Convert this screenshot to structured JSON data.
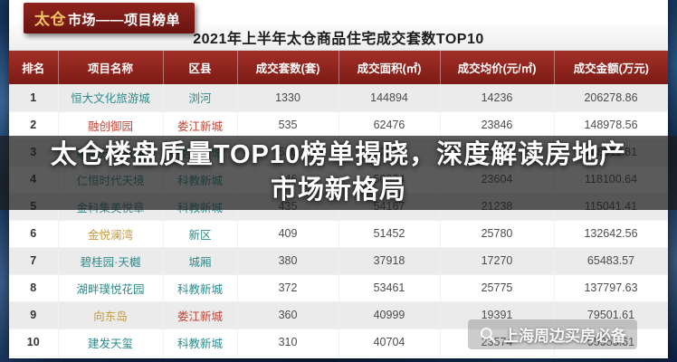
{
  "badge": {
    "prefix": "太仓",
    "suffix": "市场——项目榜单"
  },
  "overlay": {
    "line1": "太仓楼盘质量TOP10榜单揭晓，深度解读房地产",
    "line2": "市场新格局"
  },
  "watermark": {
    "icon": "magnifier-icon",
    "text": "上海周边买房必备"
  },
  "chart_data": {
    "type": "table",
    "title": "2021年上半年太仓商品住宅成交套数TOP10",
    "columns": [
      "排名",
      "项目名称",
      "区县",
      "成交套数(套)",
      "成交面积(㎡)",
      "成交均价(元/㎡)",
      "成交金额(万元)"
    ],
    "rows": [
      {
        "rank": "1",
        "name": "恒大文化旅游城",
        "district": "浏河",
        "count": "1330",
        "area": "144894",
        "price": "14236",
        "amount": "206278.86",
        "name_color": "teal",
        "district_color": "teal"
      },
      {
        "rank": "2",
        "name": "融创御园",
        "district": "娄江新城",
        "count": "535",
        "area": "62476",
        "price": "23846",
        "amount": "148978.56",
        "name_color": "red",
        "district_color": "red"
      },
      {
        "rank": "3",
        "name": "融创云樾桃源",
        "district": "娄江新城",
        "count": "520",
        "area": "62511",
        "price": "23678",
        "amount": "148011.81",
        "name_color": "teal",
        "district_color": "teal"
      },
      {
        "rank": "4",
        "name": "仁恒时代天境",
        "district": "科教新城",
        "count": "446",
        "area": "50034",
        "price": "23604",
        "amount": "118100.64",
        "name_color": "teal",
        "district_color": "teal"
      },
      {
        "rank": "5",
        "name": "金科集美悦章",
        "district": "科教新城",
        "count": "435",
        "area": "54167",
        "price": "21238",
        "amount": "115041.41",
        "name_color": "teal",
        "district_color": "teal"
      },
      {
        "rank": "6",
        "name": "金悦澜湾",
        "district": "新区",
        "count": "409",
        "area": "51452",
        "price": "25780",
        "amount": "132642.56",
        "name_color": "gold",
        "district_color": "teal"
      },
      {
        "rank": "7",
        "name": "碧桂园·天樾",
        "district": "城厢",
        "count": "380",
        "area": "37918",
        "price": "17270",
        "amount": "65483.57",
        "name_color": "teal",
        "district_color": "teal"
      },
      {
        "rank": "8",
        "name": "湖畔璞悦花园",
        "district": "科教新城",
        "count": "372",
        "area": "53461",
        "price": "25775",
        "amount": "137797.63",
        "name_color": "teal",
        "district_color": "teal"
      },
      {
        "rank": "9",
        "name": "向东岛",
        "district": "娄江新城",
        "count": "360",
        "area": "40999",
        "price": "19391",
        "amount": "79501.61",
        "name_color": "gold",
        "district_color": "red"
      },
      {
        "rank": "10",
        "name": "建发天玺",
        "district": "科教新城",
        "count": "310",
        "area": "40704",
        "price": "23574",
        "amount": "95955.61",
        "name_color": "teal",
        "district_color": "teal"
      }
    ]
  },
  "colors": {
    "teal": "#2f8b8b",
    "red": "#bf4538",
    "gold": "#c79a3e",
    "header_red": "#8e231c",
    "badge_red": "#7a1813",
    "badge_gold": "#f2c45f",
    "background_navy": "#0d2145",
    "overlay_text": "#ffffff"
  }
}
